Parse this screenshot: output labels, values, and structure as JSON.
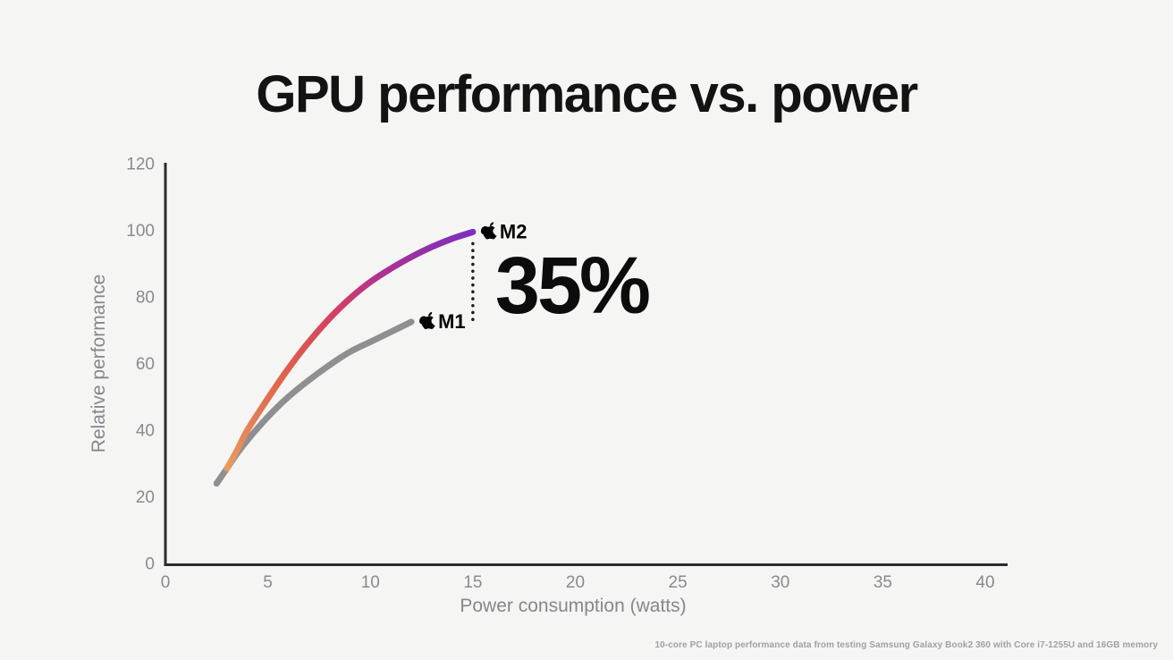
{
  "page": {
    "background": "#f5f5f4",
    "footnote": "10-core PC laptop performance data from testing Samsung Galaxy Book2 360 with Core i7-1255U and 16GB memory"
  },
  "chart_data": {
    "type": "line",
    "title": "GPU performance vs. power",
    "xlabel": "Power consumption (watts)",
    "ylabel": "Relative performance",
    "xlim": [
      0,
      40
    ],
    "ylim": [
      0,
      120
    ],
    "xticks": [
      0,
      5,
      10,
      15,
      20,
      25,
      30,
      35,
      40
    ],
    "yticks": [
      0,
      20,
      40,
      60,
      80,
      100,
      120
    ],
    "grid": false,
    "axis_color": "#2c2c2e",
    "tick_color": "#8a8a8e",
    "series": [
      {
        "name": "M1",
        "label": "M1",
        "icon": "apple-logo",
        "color": "#8f8f92",
        "x": [
          2.5,
          3,
          3.5,
          4,
          5,
          6,
          7,
          8,
          9,
          10,
          11,
          12
        ],
        "y": [
          24,
          28.5,
          33,
          37,
          44,
          50,
          55,
          59.5,
          63.5,
          66.5,
          69.5,
          72.5
        ]
      },
      {
        "name": "M2",
        "label": "M2",
        "icon": "apple-logo",
        "gradient": [
          "#E89B60",
          "#E0634A",
          "#D23F62",
          "#A93095",
          "#7B2FC0"
        ],
        "x": [
          3,
          3.5,
          4,
          5,
          6,
          7,
          8,
          9,
          10,
          11,
          12,
          13,
          14,
          15
        ],
        "y": [
          28.5,
          34,
          40,
          49.5,
          58.5,
          66.5,
          73.5,
          79.5,
          84.5,
          88.5,
          92,
          95,
          97.5,
          99.5
        ]
      }
    ],
    "annotation": {
      "text": "35%",
      "x": 15,
      "y_top": 96,
      "y_bottom": 71.5,
      "line_style": "dotted",
      "line_color": "#1d1d1f"
    }
  }
}
